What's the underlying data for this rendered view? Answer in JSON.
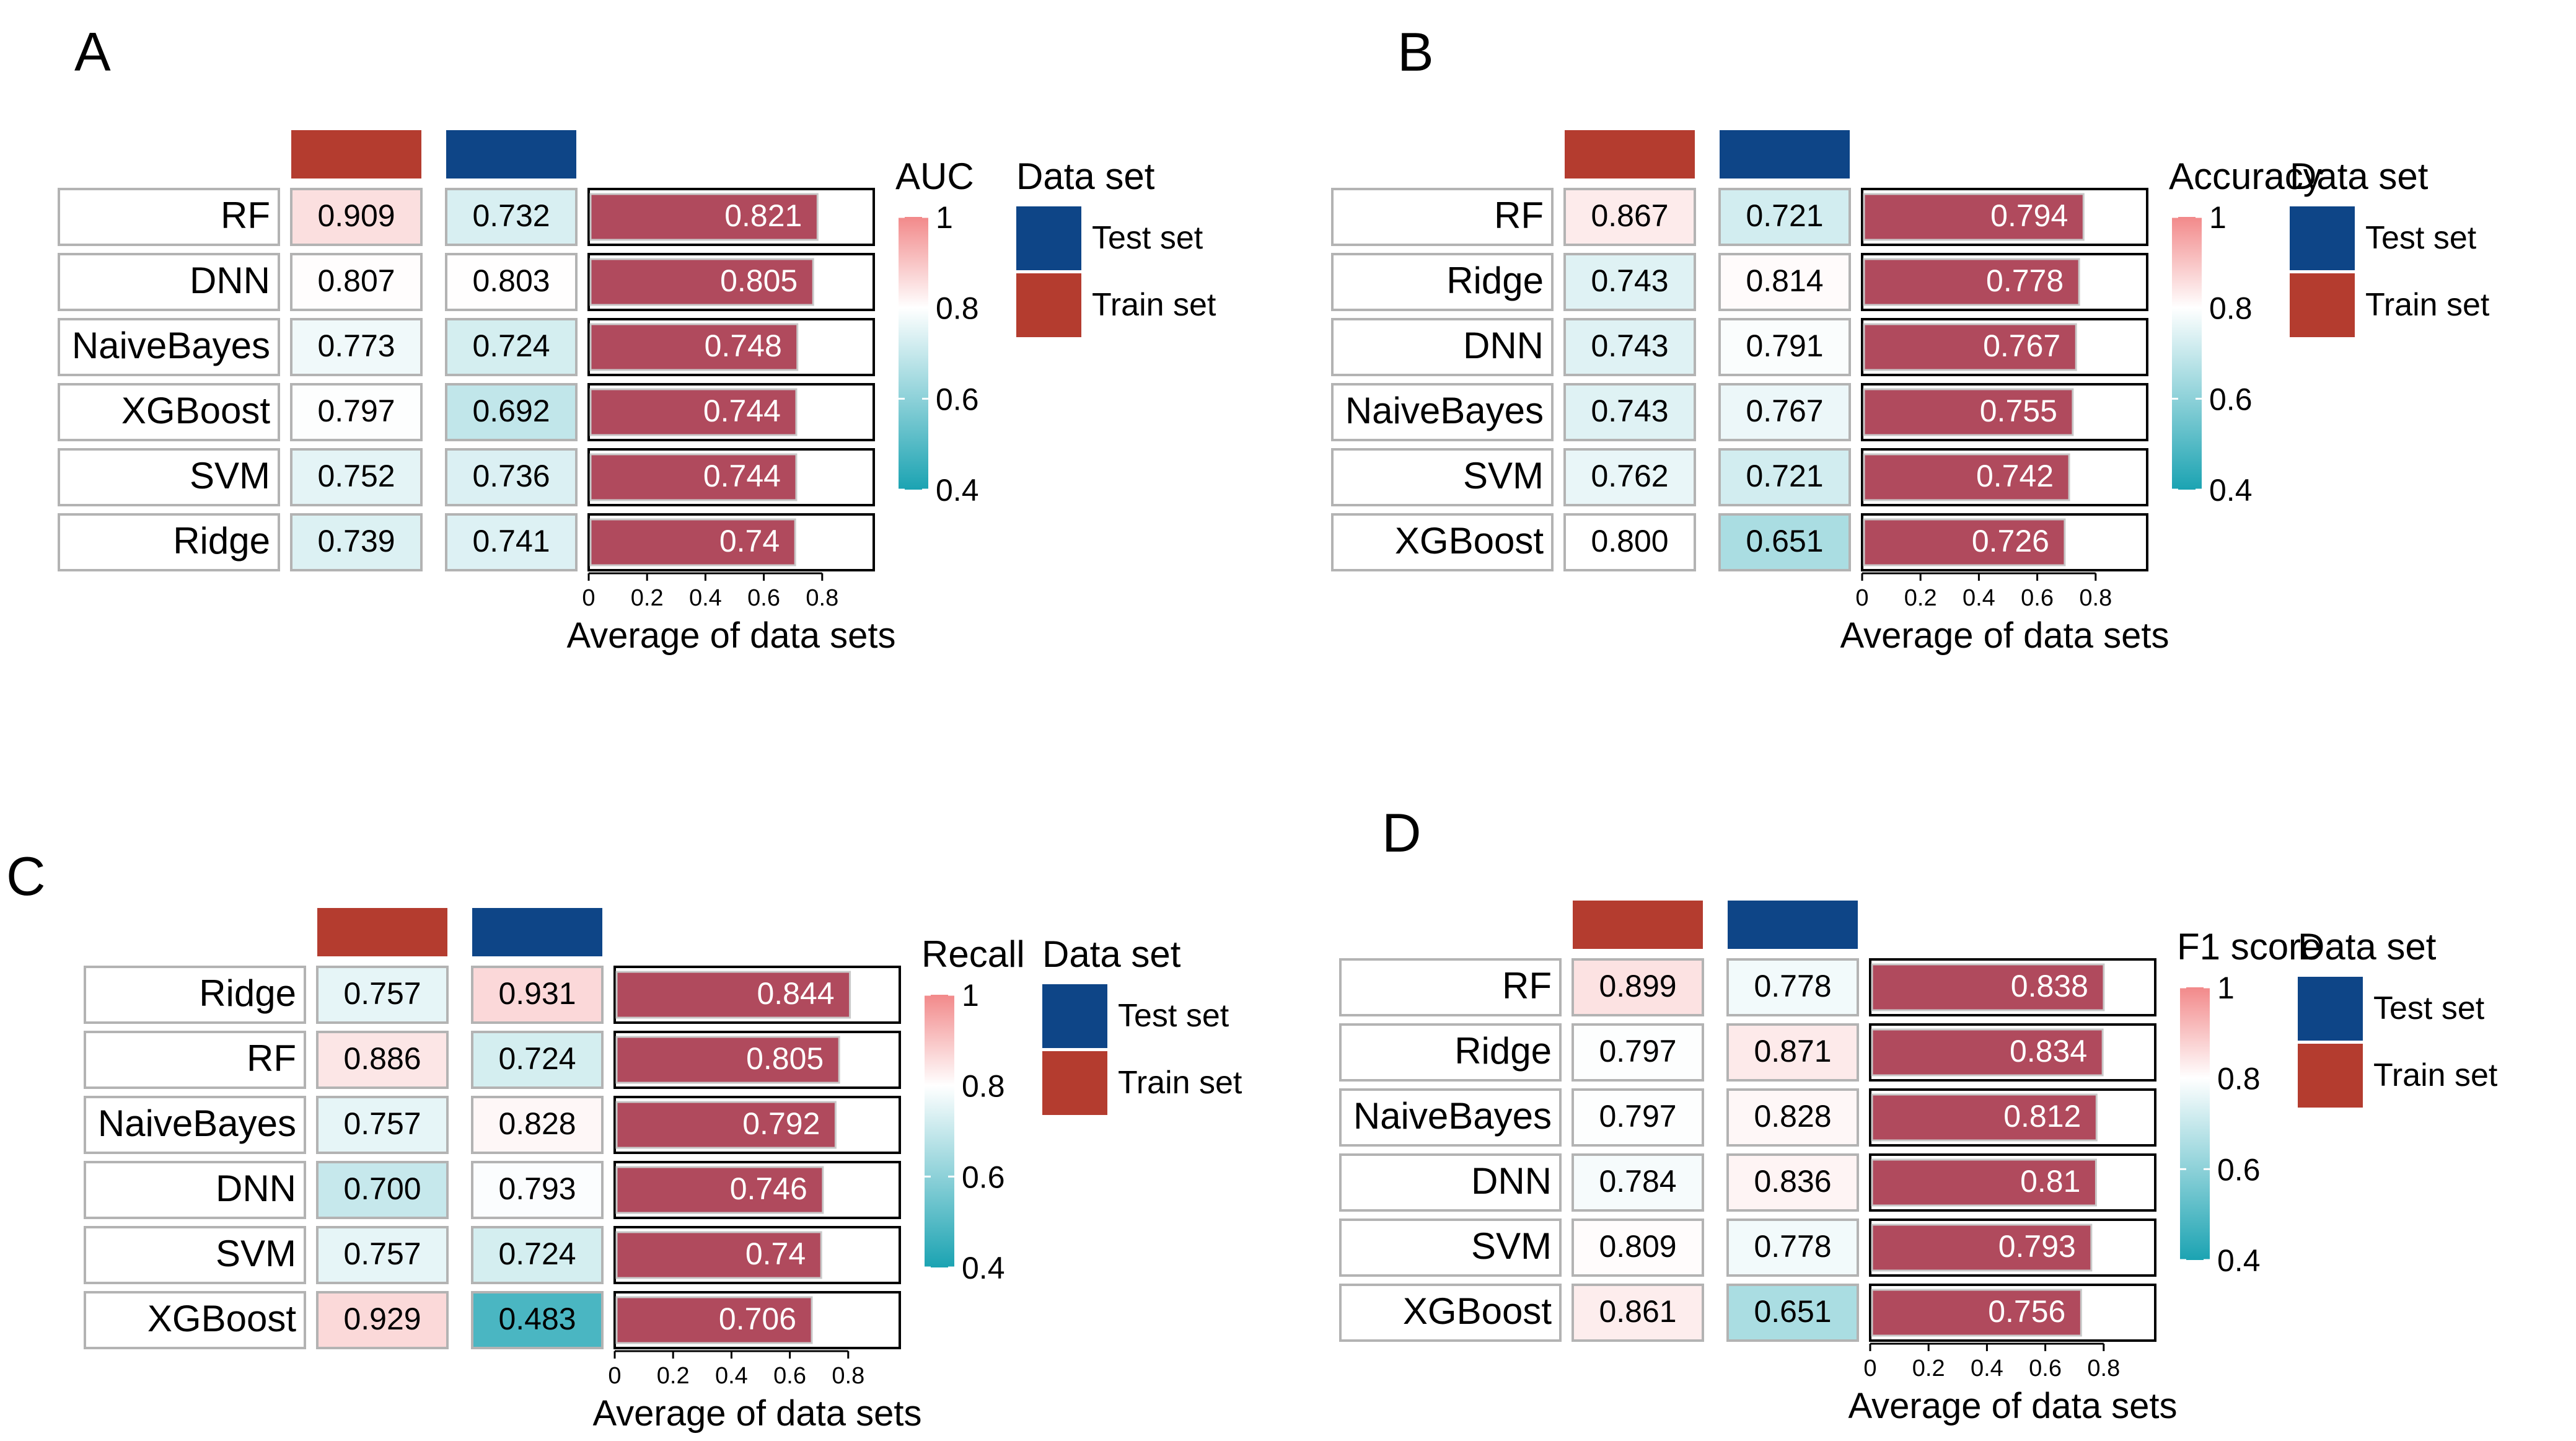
{
  "figure": {
    "x_axis_label": "Average of data sets",
    "legend": {
      "title": "Data set",
      "items": [
        {
          "name": "Test set",
          "color": "#0E4587"
        },
        {
          "name": "Train set",
          "color": "#B43C2F"
        }
      ]
    },
    "colors": {
      "train_header": "#B43C2F",
      "test_header": "#0E4587",
      "bar": "#B04A5D",
      "scale_high": "#F2898A",
      "scale_mid": "#FFFFFF",
      "scale_low": "#1BA3B2"
    }
  },
  "chart_data": [
    {
      "panel": "A",
      "type": "table",
      "metric": "AUC",
      "rows": [
        "RF",
        "DNN",
        "NaiveBayes",
        "XGBoost",
        "SVM",
        "Ridge"
      ],
      "train": [
        "0.909",
        "0.807",
        "0.773",
        "0.797",
        "0.752",
        "0.739"
      ],
      "test": [
        "0.732",
        "0.803",
        "0.724",
        "0.692",
        "0.736",
        "0.741"
      ],
      "average": [
        "0.821",
        "0.805",
        "0.748",
        "0.744",
        "0.744",
        "0.74"
      ],
      "xticks": [
        "0",
        "0.2",
        "0.4",
        "0.6",
        "0.8"
      ],
      "color_scale": {
        "labels": [
          "1",
          "0.8",
          "0.6",
          "0.4"
        ],
        "range": [
          0.4,
          1.0
        ]
      }
    },
    {
      "panel": "B",
      "type": "table",
      "metric": "Accuracy",
      "rows": [
        "RF",
        "Ridge",
        "DNN",
        "NaiveBayes",
        "SVM",
        "XGBoost"
      ],
      "train": [
        "0.867",
        "0.743",
        "0.743",
        "0.743",
        "0.762",
        "0.800"
      ],
      "test": [
        "0.721",
        "0.814",
        "0.791",
        "0.767",
        "0.721",
        "0.651"
      ],
      "average": [
        "0.794",
        "0.778",
        "0.767",
        "0.755",
        "0.742",
        "0.726"
      ],
      "xticks": [
        "0",
        "0.2",
        "0.4",
        "0.6",
        "0.8"
      ],
      "color_scale": {
        "labels": [
          "1",
          "0.8",
          "0.6",
          "0.4"
        ],
        "range": [
          0.4,
          1.0
        ]
      }
    },
    {
      "panel": "C",
      "type": "table",
      "metric": "Recall",
      "rows": [
        "Ridge",
        "RF",
        "NaiveBayes",
        "DNN",
        "SVM",
        "XGBoost"
      ],
      "train": [
        "0.757",
        "0.886",
        "0.757",
        "0.700",
        "0.757",
        "0.929"
      ],
      "test": [
        "0.931",
        "0.724",
        "0.828",
        "0.793",
        "0.724",
        "0.483"
      ],
      "average": [
        "0.844",
        "0.805",
        "0.792",
        "0.746",
        "0.74",
        "0.706"
      ],
      "xticks": [
        "0",
        "0.2",
        "0.4",
        "0.6",
        "0.8"
      ],
      "color_scale": {
        "labels": [
          "1",
          "0.8",
          "0.6",
          "0.4"
        ],
        "range": [
          0.4,
          1.0
        ]
      }
    },
    {
      "panel": "D",
      "type": "table",
      "metric": "F1 score",
      "rows": [
        "RF",
        "Ridge",
        "NaiveBayes",
        "DNN",
        "SVM",
        "XGBoost"
      ],
      "train": [
        "0.899",
        "0.797",
        "0.797",
        "0.784",
        "0.809",
        "0.861"
      ],
      "test": [
        "0.778",
        "0.871",
        "0.828",
        "0.836",
        "0.778",
        "0.651"
      ],
      "average": [
        "0.838",
        "0.834",
        "0.812",
        "0.81",
        "0.793",
        "0.756"
      ],
      "xticks": [
        "0",
        "0.2",
        "0.4",
        "0.6",
        "0.8"
      ],
      "color_scale": {
        "labels": [
          "1",
          "0.8",
          "0.6",
          "0.4"
        ],
        "range": [
          0.4,
          1.0
        ]
      }
    }
  ]
}
